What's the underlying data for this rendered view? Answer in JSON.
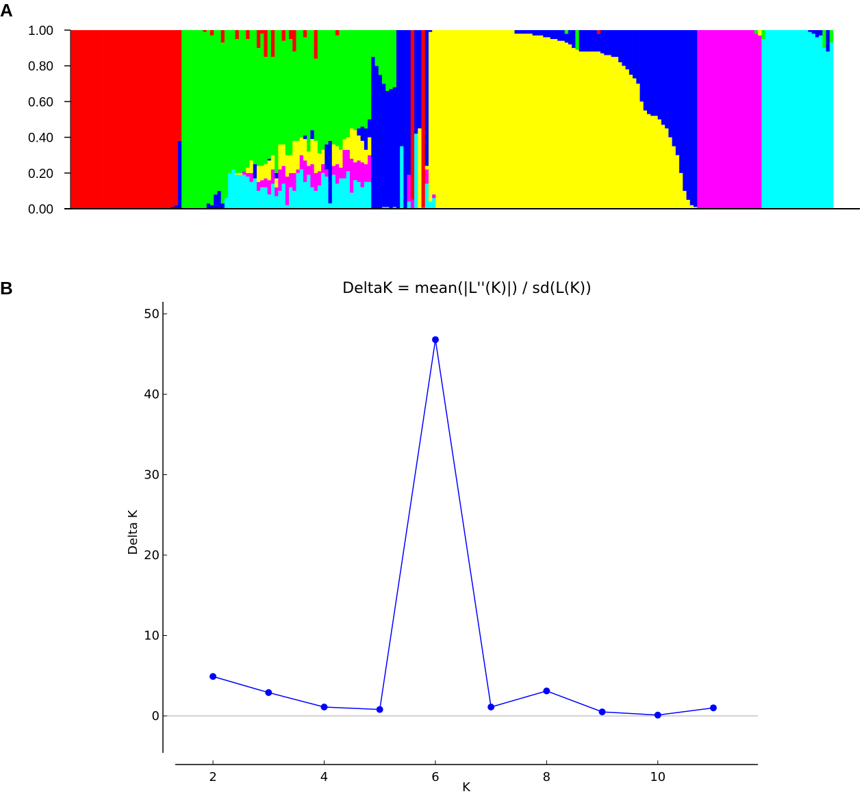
{
  "panels": {
    "a": "A",
    "b": "B"
  },
  "chart_data": [
    {
      "type": "bar",
      "stacked": true,
      "panel": "A",
      "ylim": [
        0,
        1
      ],
      "ytick_labels": [
        "0.00",
        "0.20",
        "0.40",
        "0.60",
        "0.80",
        "1.00"
      ],
      "colors": {
        "red": "#ff0000",
        "green": "#00ff00",
        "blue": "#0000ff",
        "yellow": "#ffff00",
        "magenta": "#ff00ff",
        "cyan": "#00ffff"
      },
      "cluster_order": [
        "cyan",
        "magenta",
        "yellow",
        "blue",
        "green",
        "red"
      ],
      "group_blocks": [
        {
          "count": 28,
          "proportions": {
            "red": 1.0
          }
        },
        {
          "count": 1,
          "proportions": {
            "blue": 0.01,
            "red": 0.99
          }
        },
        {
          "count": 1,
          "proportions": {
            "blue": 0.02,
            "red": 0.98
          }
        },
        {
          "count": 1,
          "proportions": {
            "blue": 0.38,
            "red": 0.62
          }
        },
        {
          "count": 6,
          "proportions": {
            "green": 1.0
          }
        },
        {
          "count": 1,
          "proportions": {
            "green": 0.99,
            "red": 0.01
          }
        },
        {
          "count": 1,
          "proportions": {
            "blue": 0.03,
            "green": 0.97
          }
        },
        {
          "count": 1,
          "proportions": {
            "blue": 0.02,
            "green": 0.95,
            "red": 0.03
          }
        },
        {
          "count": 1,
          "proportions": {
            "blue": 0.08,
            "green": 0.92
          }
        },
        {
          "count": 1,
          "proportions": {
            "blue": 0.1,
            "green": 0.9
          }
        },
        {
          "count": 1,
          "proportions": {
            "blue": 0.03,
            "green": 0.9,
            "red": 0.07
          }
        },
        {
          "count": 1,
          "proportions": {
            "cyan": 0.06,
            "green": 0.94
          }
        },
        {
          "count": 1,
          "proportions": {
            "cyan": 0.2,
            "green": 0.8
          }
        },
        {
          "count": 1,
          "proportions": {
            "cyan": 0.22,
            "green": 0.78
          }
        },
        {
          "count": 1,
          "proportions": {
            "cyan": 0.19,
            "yellow": 0.01,
            "green": 0.75,
            "red": 0.05
          }
        },
        {
          "count": 1,
          "proportions": {
            "cyan": 0.19,
            "yellow": 0.01,
            "green": 0.8
          }
        },
        {
          "count": 1,
          "proportions": {
            "cyan": 0.19,
            "magenta": 0.02,
            "green": 0.79
          }
        },
        {
          "count": 1,
          "proportions": {
            "cyan": 0.18,
            "magenta": 0.02,
            "yellow": 0.03,
            "green": 0.72,
            "red": 0.05
          }
        },
        {
          "count": 1,
          "proportions": {
            "cyan": 0.15,
            "magenta": 0.05,
            "yellow": 0.07,
            "green": 0.73
          }
        },
        {
          "count": 1,
          "proportions": {
            "cyan": 0.17,
            "blue": 0.08,
            "green": 0.75
          }
        },
        {
          "count": 1,
          "proportions": {
            "cyan": 0.1,
            "magenta": 0.05,
            "yellow": 0.09,
            "green": 0.66,
            "red": 0.1
          }
        },
        {
          "count": 1,
          "proportions": {
            "cyan": 0.12,
            "magenta": 0.04,
            "yellow": 0.08,
            "green": 0.74,
            "red": 0.02
          }
        },
        {
          "count": 1,
          "proportions": {
            "cyan": 0.12,
            "magenta": 0.05,
            "yellow": 0.08,
            "green": 0.6,
            "red": 0.15
          }
        },
        {
          "count": 1,
          "proportions": {
            "cyan": 0.08,
            "magenta": 0.08,
            "yellow": 0.11,
            "blue": 0.01,
            "green": 0.72
          }
        },
        {
          "count": 1,
          "proportions": {
            "cyan": 0.14,
            "magenta": 0.08,
            "yellow": 0.08,
            "green": 0.55,
            "red": 0.15
          }
        },
        {
          "count": 1,
          "proportions": {
            "cyan": 0.07,
            "magenta": 0.05,
            "yellow": 0.05,
            "blue": 0.03,
            "green": 0.8
          }
        },
        {
          "count": 1,
          "proportions": {
            "cyan": 0.1,
            "magenta": 0.12,
            "yellow": 0.14,
            "green": 0.64
          }
        },
        {
          "count": 1,
          "proportions": {
            "cyan": 0.14,
            "magenta": 0.1,
            "yellow": 0.12,
            "green": 0.58,
            "red": 0.06
          }
        },
        {
          "count": 1,
          "proportions": {
            "cyan": 0.02,
            "magenta": 0.16,
            "yellow": 0.12,
            "green": 0.7
          }
        },
        {
          "count": 1,
          "proportions": {
            "cyan": 0.12,
            "magenta": 0.08,
            "yellow": 0.1,
            "green": 0.65,
            "red": 0.05
          }
        },
        {
          "count": 1,
          "proportions": {
            "cyan": 0.1,
            "magenta": 0.1,
            "yellow": 0.18,
            "green": 0.5,
            "red": 0.12
          }
        },
        {
          "count": 1,
          "proportions": {
            "cyan": 0.2,
            "magenta": 0.02,
            "yellow": 0.16,
            "green": 0.62
          }
        },
        {
          "count": 1,
          "proportions": {
            "cyan": 0.22,
            "magenta": 0.08,
            "yellow": 0.1,
            "green": 0.6
          }
        },
        {
          "count": 1,
          "proportions": {
            "cyan": 0.15,
            "magenta": 0.12,
            "yellow": 0.12,
            "blue": 0.02,
            "green": 0.55,
            "red": 0.04
          }
        },
        {
          "count": 1,
          "proportions": {
            "cyan": 0.19,
            "magenta": 0.05,
            "yellow": 0.08,
            "green": 0.68
          }
        },
        {
          "count": 1,
          "proportions": {
            "cyan": 0.12,
            "magenta": 0.13,
            "yellow": 0.14,
            "blue": 0.05,
            "green": 0.56
          }
        },
        {
          "count": 1,
          "proportions": {
            "cyan": 0.1,
            "magenta": 0.1,
            "yellow": 0.18,
            "green": 0.46,
            "red": 0.16
          }
        },
        {
          "count": 1,
          "proportions": {
            "cyan": 0.13,
            "magenta": 0.08,
            "yellow": 0.1,
            "green": 0.69
          }
        },
        {
          "count": 1,
          "proportions": {
            "cyan": 0.2,
            "magenta": 0.05,
            "yellow": 0.08,
            "green": 0.67
          }
        },
        {
          "count": 1,
          "proportions": {
            "cyan": 0.18,
            "magenta": 0.04,
            "blue": 0.14,
            "green": 0.64
          }
        },
        {
          "count": 1,
          "proportions": {
            "cyan": 0.03,
            "blue": 0.35,
            "green": 0.62
          }
        },
        {
          "count": 1,
          "proportions": {
            "cyan": 0.19,
            "magenta": 0.05,
            "yellow": 0.12,
            "green": 0.64
          }
        },
        {
          "count": 1,
          "proportions": {
            "cyan": 0.14,
            "magenta": 0.11,
            "yellow": 0.1,
            "green": 0.62,
            "red": 0.03
          }
        },
        {
          "count": 1,
          "proportions": {
            "cyan": 0.17,
            "magenta": 0.06,
            "yellow": 0.1,
            "green": 0.67
          }
        },
        {
          "count": 1,
          "proportions": {
            "cyan": 0.17,
            "magenta": 0.16,
            "yellow": 0.06,
            "green": 0.61
          }
        },
        {
          "count": 1,
          "proportions": {
            "cyan": 0.21,
            "magenta": 0.12,
            "yellow": 0.07,
            "green": 0.6
          }
        },
        {
          "count": 1,
          "proportions": {
            "cyan": 0.09,
            "magenta": 0.19,
            "yellow": 0.17,
            "green": 0.55
          }
        },
        {
          "count": 1,
          "proportions": {
            "cyan": 0.16,
            "magenta": 0.1,
            "yellow": 0.18,
            "green": 0.56
          }
        },
        {
          "count": 1,
          "proportions": {
            "cyan": 0.15,
            "magenta": 0.12,
            "yellow": 0.14,
            "blue": 0.04,
            "green": 0.55
          }
        },
        {
          "count": 1,
          "proportions": {
            "cyan": 0.12,
            "magenta": 0.14,
            "yellow": 0.12,
            "blue": 0.08,
            "green": 0.54
          }
        },
        {
          "count": 1,
          "proportions": {
            "cyan": 0.15,
            "magenta": 0.1,
            "yellow": 0.08,
            "blue": 0.12,
            "green": 0.55
          }
        },
        {
          "count": 1,
          "proportions": {
            "cyan": 0.15,
            "magenta": 0.15,
            "yellow": 0.1,
            "blue": 0.1,
            "green": 0.5
          }
        },
        {
          "count": 1,
          "proportions": {
            "blue": 0.85,
            "green": 0.15
          }
        },
        {
          "count": 1,
          "proportions": {
            "blue": 0.8,
            "green": 0.2
          }
        },
        {
          "count": 1,
          "proportions": {
            "blue": 0.75,
            "green": 0.25
          }
        },
        {
          "count": 1,
          "proportions": {
            "cyan": 0.01,
            "blue": 0.69,
            "green": 0.3
          }
        },
        {
          "count": 1,
          "proportions": {
            "cyan": 0.01,
            "blue": 0.65,
            "green": 0.34
          }
        },
        {
          "count": 1,
          "proportions": {
            "blue": 0.67,
            "green": 0.33
          }
        },
        {
          "count": 1,
          "proportions": {
            "cyan": 0.01,
            "blue": 0.67,
            "green": 0.32
          }
        },
        {
          "count": 1,
          "proportions": {
            "blue": 1.0
          }
        },
        {
          "count": 1,
          "proportions": {
            "cyan": 0.35,
            "blue": 0.65
          }
        },
        {
          "count": 1,
          "proportions": {
            "blue": 1.0
          }
        },
        {
          "count": 1,
          "proportions": {
            "cyan": 0.04,
            "magenta": 0.15,
            "blue": 0.81
          }
        },
        {
          "count": 1,
          "proportions": {
            "magenta": 0.05,
            "red": 0.95
          }
        },
        {
          "count": 1,
          "proportions": {
            "cyan": 0.42,
            "blue": 0.58
          }
        },
        {
          "count": 1,
          "proportions": {
            "yellow": 0.45,
            "blue": 0.55
          }
        },
        {
          "count": 1,
          "proportions": {
            "magenta": 0.01,
            "red": 0.99
          }
        },
        {
          "count": 1,
          "proportions": {
            "cyan": 0.14,
            "magenta": 0.08,
            "yellow": 0.02,
            "blue": 0.76
          }
        },
        {
          "count": 1,
          "proportions": {
            "cyan": 0.04,
            "yellow": 0.95,
            "blue": 0.01
          }
        },
        {
          "count": 1,
          "proportions": {
            "cyan": 0.06,
            "magenta": 0.02,
            "yellow": 0.92
          }
        },
        {
          "count": 22,
          "proportions": {
            "yellow": 1.0
          }
        },
        {
          "count": 5,
          "proportions": {
            "yellow": 0.98,
            "blue": 0.02
          }
        },
        {
          "count": 3,
          "proportions": {
            "yellow": 0.97,
            "blue": 0.03
          }
        },
        {
          "count": 2,
          "proportions": {
            "yellow": 0.96,
            "blue": 0.04
          }
        },
        {
          "count": 2,
          "proportions": {
            "yellow": 0.95,
            "blue": 0.05
          }
        },
        {
          "count": 2,
          "proportions": {
            "yellow": 0.94,
            "blue": 0.06
          }
        },
        {
          "count": 1,
          "proportions": {
            "yellow": 0.93,
            "green": 0.02,
            "blue": 0.05
          }
        },
        {
          "count": 1,
          "proportions": {
            "yellow": 0.92,
            "blue": 0.08
          }
        },
        {
          "count": 1,
          "proportions": {
            "yellow": 0.9,
            "blue": 0.1
          }
        },
        {
          "count": 1,
          "proportions": {
            "yellow": 0.89,
            "green": 0.11
          }
        },
        {
          "count": 5,
          "proportions": {
            "yellow": 0.88,
            "blue": 0.12
          }
        },
        {
          "count": 1,
          "proportions": {
            "yellow": 0.88,
            "blue": 0.1,
            "red": 0.02
          }
        },
        {
          "count": 1,
          "proportions": {
            "yellow": 0.87,
            "blue": 0.13
          }
        },
        {
          "count": 2,
          "proportions": {
            "yellow": 0.86,
            "blue": 0.14
          }
        },
        {
          "count": 2,
          "proportions": {
            "yellow": 0.85,
            "blue": 0.15
          }
        },
        {
          "count": 1,
          "proportions": {
            "yellow": 0.82,
            "blue": 0.18
          }
        },
        {
          "count": 1,
          "proportions": {
            "yellow": 0.8,
            "blue": 0.2
          }
        },
        {
          "count": 1,
          "proportions": {
            "yellow": 0.78,
            "blue": 0.22
          }
        },
        {
          "count": 1,
          "proportions": {
            "yellow": 0.75,
            "blue": 0.25
          }
        },
        {
          "count": 1,
          "proportions": {
            "yellow": 0.73,
            "blue": 0.27
          }
        },
        {
          "count": 1,
          "proportions": {
            "yellow": 0.7,
            "blue": 0.3
          }
        },
        {
          "count": 1,
          "proportions": {
            "yellow": 0.6,
            "blue": 0.4
          }
        },
        {
          "count": 1,
          "proportions": {
            "yellow": 0.55,
            "blue": 0.45
          }
        },
        {
          "count": 1,
          "proportions": {
            "yellow": 0.53,
            "blue": 0.47
          }
        },
        {
          "count": 2,
          "proportions": {
            "yellow": 0.52,
            "blue": 0.48
          }
        },
        {
          "count": 1,
          "proportions": {
            "yellow": 0.5,
            "blue": 0.5
          }
        },
        {
          "count": 1,
          "proportions": {
            "yellow": 0.47,
            "blue": 0.53
          }
        },
        {
          "count": 1,
          "proportions": {
            "yellow": 0.45,
            "blue": 0.55
          }
        },
        {
          "count": 1,
          "proportions": {
            "yellow": 0.4,
            "blue": 0.6
          }
        },
        {
          "count": 1,
          "proportions": {
            "yellow": 0.35,
            "blue": 0.65
          }
        },
        {
          "count": 1,
          "proportions": {
            "yellow": 0.3,
            "blue": 0.7
          }
        },
        {
          "count": 1,
          "proportions": {
            "yellow": 0.2,
            "blue": 0.8
          }
        },
        {
          "count": 1,
          "proportions": {
            "yellow": 0.1,
            "blue": 0.9
          }
        },
        {
          "count": 1,
          "proportions": {
            "yellow": 0.05,
            "blue": 0.95
          }
        },
        {
          "count": 1,
          "proportions": {
            "yellow": 0.02,
            "blue": 0.98
          }
        },
        {
          "count": 1,
          "proportions": {
            "yellow": 0.01,
            "blue": 0.99
          }
        },
        {
          "count": 16,
          "proportions": {
            "magenta": 1.0
          }
        },
        {
          "count": 1,
          "proportions": {
            "magenta": 0.98,
            "green": 0.02
          }
        },
        {
          "count": 1,
          "proportions": {
            "magenta": 0.97,
            "yellow": 0.03
          }
        },
        {
          "count": 1,
          "proportions": {
            "cyan": 0.95,
            "green": 0.05
          }
        },
        {
          "count": 12,
          "proportions": {
            "cyan": 1.0
          }
        },
        {
          "count": 1,
          "proportions": {
            "cyan": 0.99,
            "blue": 0.01
          }
        },
        {
          "count": 1,
          "proportions": {
            "cyan": 0.98,
            "blue": 0.02
          }
        },
        {
          "count": 1,
          "proportions": {
            "cyan": 0.96,
            "blue": 0.04
          }
        },
        {
          "count": 1,
          "proportions": {
            "cyan": 0.97,
            "blue": 0.03
          }
        },
        {
          "count": 1,
          "proportions": {
            "cyan": 0.9,
            "green": 0.1
          }
        },
        {
          "count": 1,
          "proportions": {
            "cyan": 0.88,
            "blue": 0.12
          }
        },
        {
          "count": 1,
          "proportions": {
            "cyan": 0.93,
            "green": 0.07
          }
        }
      ]
    },
    {
      "type": "line",
      "panel": "B",
      "title": "DeltaK = mean(|L''(K)|) / sd(L(K))",
      "xlabel": "K",
      "ylabel": "Delta K",
      "x": [
        2,
        3,
        4,
        5,
        6,
        7,
        8,
        9,
        10,
        11
      ],
      "y": [
        4.9,
        2.9,
        1.1,
        0.8,
        46.8,
        1.1,
        3.1,
        0.5,
        0.1,
        1.0
      ],
      "xticks": [
        2,
        4,
        6,
        8,
        10
      ],
      "yticks": [
        0,
        10,
        20,
        30,
        40,
        50
      ],
      "xlim": [
        1.1,
        11.8
      ],
      "ylim": [
        -4.6,
        51.5
      ],
      "color": "#0000ff",
      "zero_line_color": "#aaaaaa"
    }
  ]
}
